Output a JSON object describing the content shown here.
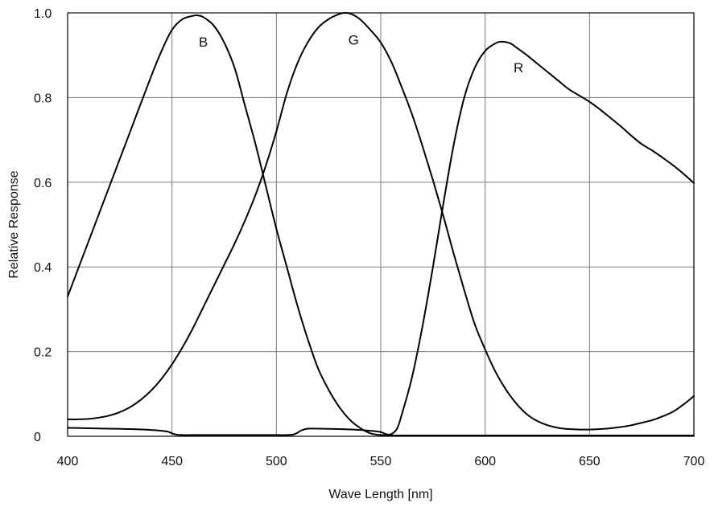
{
  "chart_data": {
    "type": "line",
    "xlabel": "Wave Length [nm]",
    "ylabel": "Relative Response",
    "xlim": [
      400,
      700
    ],
    "ylim": [
      0,
      1.0
    ],
    "x_ticks": [
      400,
      450,
      500,
      550,
      600,
      650,
      700
    ],
    "x_tick_labels": [
      "400",
      "450",
      "500",
      "550",
      "600",
      "650",
      "700"
    ],
    "y_ticks": [
      0,
      0.2,
      0.4,
      0.6,
      0.8,
      1.0
    ],
    "y_tick_labels": [
      "0",
      "0.2",
      "0.4",
      "0.6",
      "0.8",
      "1.0"
    ],
    "grid": true,
    "legend": "none",
    "series": [
      {
        "name": "B",
        "color": "#000000",
        "x": [
          400,
          410,
          420,
          430,
          440,
          445,
          450,
          455,
          460,
          462,
          465,
          470,
          475,
          480,
          485,
          490,
          495,
          500,
          505,
          510,
          515,
          520,
          525,
          530,
          535,
          540,
          545,
          550,
          555,
          560,
          570,
          580,
          590,
          600,
          620,
          640,
          660,
          680,
          700
        ],
        "y": [
          0.33,
          0.46,
          0.59,
          0.72,
          0.85,
          0.91,
          0.96,
          0.985,
          0.993,
          0.994,
          0.99,
          0.97,
          0.93,
          0.87,
          0.78,
          0.69,
          0.59,
          0.49,
          0.4,
          0.31,
          0.23,
          0.16,
          0.11,
          0.07,
          0.04,
          0.02,
          0.007,
          0.003,
          0.002,
          0.002,
          0.002,
          0.002,
          0.002,
          0.002,
          0.002,
          0.002,
          0.002,
          0.002,
          0.002
        ]
      },
      {
        "name": "G",
        "color": "#000000",
        "x": [
          400,
          405,
          410,
          415,
          420,
          425,
          430,
          435,
          440,
          445,
          450,
          455,
          460,
          465,
          470,
          475,
          480,
          485,
          490,
          495,
          500,
          505,
          510,
          515,
          520,
          525,
          530,
          533,
          536,
          540,
          545,
          550,
          555,
          560,
          565,
          570,
          575,
          580,
          585,
          590,
          595,
          600,
          605,
          610,
          615,
          620,
          625,
          630,
          635,
          640,
          645,
          650,
          655,
          660,
          665,
          670,
          675,
          680,
          685,
          690,
          695,
          700
        ],
        "y": [
          0.04,
          0.04,
          0.041,
          0.044,
          0.049,
          0.057,
          0.069,
          0.086,
          0.108,
          0.136,
          0.17,
          0.21,
          0.255,
          0.305,
          0.355,
          0.405,
          0.455,
          0.51,
          0.57,
          0.64,
          0.72,
          0.81,
          0.88,
          0.93,
          0.965,
          0.985,
          0.997,
          1.0,
          0.997,
          0.985,
          0.96,
          0.93,
          0.885,
          0.825,
          0.76,
          0.685,
          0.605,
          0.52,
          0.43,
          0.345,
          0.265,
          0.205,
          0.152,
          0.11,
          0.077,
          0.052,
          0.036,
          0.026,
          0.02,
          0.017,
          0.016,
          0.016,
          0.017,
          0.019,
          0.022,
          0.026,
          0.032,
          0.038,
          0.047,
          0.058,
          0.075,
          0.095
        ]
      },
      {
        "name": "R",
        "color": "#000000",
        "x": [
          400,
          410,
          420,
          430,
          440,
          445,
          448,
          450,
          452,
          455,
          460,
          470,
          480,
          490,
          500,
          505,
          508,
          510,
          512,
          515,
          520,
          530,
          540,
          545,
          550,
          552,
          554,
          556,
          558,
          560,
          565,
          570,
          575,
          580,
          585,
          590,
          595,
          600,
          605,
          608,
          612,
          615,
          620,
          625,
          630,
          635,
          640,
          645,
          650,
          655,
          660,
          665,
          670,
          675,
          680,
          685,
          690,
          695,
          700
        ],
        "y": [
          0.02,
          0.019,
          0.018,
          0.017,
          0.015,
          0.013,
          0.011,
          0.007,
          0.004,
          0.003,
          0.003,
          0.003,
          0.003,
          0.003,
          0.003,
          0.003,
          0.004,
          0.008,
          0.014,
          0.018,
          0.018,
          0.017,
          0.015,
          0.013,
          0.01,
          0.006,
          0.004,
          0.008,
          0.02,
          0.05,
          0.14,
          0.26,
          0.4,
          0.55,
          0.69,
          0.8,
          0.87,
          0.91,
          0.928,
          0.932,
          0.928,
          0.918,
          0.9,
          0.88,
          0.86,
          0.84,
          0.82,
          0.805,
          0.79,
          0.772,
          0.752,
          0.732,
          0.71,
          0.69,
          0.675,
          0.658,
          0.64,
          0.62,
          0.598
        ]
      }
    ],
    "annotations": [
      {
        "text": "B",
        "x": 465,
        "y": 0.92
      },
      {
        "text": "G",
        "x": 537,
        "y": 0.925
      },
      {
        "text": "R",
        "x": 616,
        "y": 0.86
      }
    ]
  }
}
